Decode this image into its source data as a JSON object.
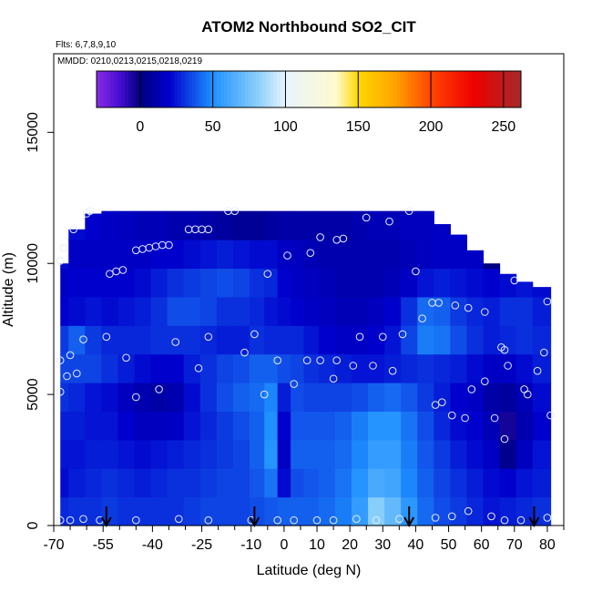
{
  "chart_data": {
    "type": "heatmap",
    "title": "ATOM2 Northbound SO2_CIT",
    "notes": [
      "Flts: 6,7,8,9,10",
      "MMDD: 0210,0213,0215,0218,0219"
    ],
    "xlabel": "Latitude (deg N)",
    "ylabel": "Altitude (m)",
    "xlim": [
      -70,
      85
    ],
    "ylim": [
      0,
      18000
    ],
    "x_ticks": [
      -70,
      -55,
      -40,
      -25,
      -10,
      0,
      10,
      20,
      30,
      40,
      50,
      60,
      70,
      80
    ],
    "x_tick_labels": [
      "-70",
      "-55",
      "-40",
      "-25",
      "-10",
      "0",
      "10",
      "20",
      "30",
      "40",
      "50",
      "60",
      "70",
      "80"
    ],
    "y_ticks": [
      0,
      5000,
      10000,
      15000
    ],
    "y_tick_labels": [
      "0",
      "5000",
      "10000",
      "15000"
    ],
    "colorbar": {
      "min": -30,
      "max": 262,
      "ticks": [
        0,
        50,
        100,
        150,
        200,
        250
      ],
      "tick_labels": [
        "0",
        "50",
        "100",
        "150",
        "200",
        "250"
      ],
      "stops": [
        {
          "v": -30,
          "color": "#8b2be2"
        },
        {
          "v": -15,
          "color": "#4b0fd6"
        },
        {
          "v": 0,
          "color": "#000080"
        },
        {
          "v": 20,
          "color": "#0000cd"
        },
        {
          "v": 50,
          "color": "#1e90ff"
        },
        {
          "v": 80,
          "color": "#87cefa"
        },
        {
          "v": 100,
          "color": "#e8f4ff"
        },
        {
          "v": 135,
          "color": "#fffacd"
        },
        {
          "v": 150,
          "color": "#ffd700"
        },
        {
          "v": 175,
          "color": "#ffa500"
        },
        {
          "v": 200,
          "color": "#ff4500"
        },
        {
          "v": 230,
          "color": "#ee0000"
        },
        {
          "v": 262,
          "color": "#a52a2a"
        }
      ]
    },
    "envelope": [
      {
        "x": -68,
        "top": 10000
      },
      {
        "x": -67,
        "top": 10600
      },
      {
        "x": -65,
        "top": 11300
      },
      {
        "x": -60,
        "top": 11900
      },
      {
        "x": -55,
        "top": 12000
      },
      {
        "x": 38,
        "top": 12000
      },
      {
        "x": 43,
        "top": 11500
      },
      {
        "x": 48,
        "top": 11100
      },
      {
        "x": 53,
        "top": 10500
      },
      {
        "x": 58,
        "top": 10000
      },
      {
        "x": 63,
        "top": 9600
      },
      {
        "x": 68,
        "top": 9300
      },
      {
        "x": 73,
        "top": 9100
      },
      {
        "x": 78,
        "top": 8800
      },
      {
        "x": 80,
        "top": 8700
      }
    ],
    "field": [
      {
        "x": -68,
        "values": [
          28,
          22,
          24,
          26,
          30,
          34,
          32,
          20,
          18,
          22,
          24
        ]
      },
      {
        "x": -63,
        "values": [
          30,
          26,
          24,
          26,
          28,
          34,
          40,
          22,
          20,
          18,
          22
        ]
      },
      {
        "x": -58,
        "values": [
          30,
          28,
          26,
          24,
          24,
          34,
          32,
          24,
          20,
          18,
          20
        ]
      },
      {
        "x": -53,
        "values": [
          32,
          30,
          26,
          24,
          22,
          30,
          28,
          22,
          20,
          18,
          18
        ]
      },
      {
        "x": -48,
        "values": [
          30,
          28,
          24,
          20,
          16,
          26,
          28,
          24,
          20,
          18,
          16
        ]
      },
      {
        "x": -43,
        "values": [
          30,
          26,
          22,
          16,
          12,
          22,
          28,
          26,
          22,
          18,
          14
        ]
      },
      {
        "x": -38,
        "values": [
          30,
          28,
          24,
          16,
          10,
          20,
          30,
          30,
          26,
          20,
          14
        ]
      },
      {
        "x": -33,
        "values": [
          30,
          30,
          26,
          18,
          12,
          20,
          30,
          36,
          30,
          20,
          12
        ]
      },
      {
        "x": -28,
        "values": [
          32,
          30,
          28,
          24,
          22,
          26,
          30,
          36,
          32,
          22,
          12
        ]
      },
      {
        "x": -23,
        "values": [
          34,
          32,
          30,
          28,
          30,
          30,
          28,
          34,
          34,
          24,
          10
        ]
      },
      {
        "x": -18,
        "values": [
          34,
          34,
          32,
          32,
          36,
          34,
          26,
          30,
          36,
          26,
          8
        ]
      },
      {
        "x": -13,
        "values": [
          34,
          34,
          34,
          36,
          40,
          36,
          26,
          30,
          34,
          24,
          6
        ]
      },
      {
        "x": -8,
        "values": [
          36,
          38,
          40,
          40,
          42,
          40,
          30,
          28,
          30,
          22,
          6
        ]
      },
      {
        "x": -4,
        "values": [
          38,
          44,
          52,
          50,
          48,
          40,
          28,
          24,
          28,
          22,
          8
        ]
      },
      {
        "x": 0,
        "values": [
          40,
          22,
          18,
          20,
          26,
          36,
          28,
          22,
          20,
          18,
          10
        ]
      },
      {
        "x": 4,
        "values": [
          40,
          36,
          40,
          38,
          36,
          34,
          28,
          20,
          18,
          16,
          10
        ]
      },
      {
        "x": 8,
        "values": [
          40,
          38,
          40,
          38,
          34,
          30,
          24,
          18,
          16,
          14,
          10
        ]
      },
      {
        "x": 13,
        "values": [
          42,
          40,
          40,
          38,
          34,
          28,
          20,
          16,
          14,
          12,
          10
        ]
      },
      {
        "x": 18,
        "values": [
          46,
          44,
          42,
          40,
          34,
          26,
          18,
          14,
          12,
          12,
          10
        ]
      },
      {
        "x": 23,
        "values": [
          56,
          52,
          48,
          46,
          36,
          24,
          18,
          14,
          12,
          12,
          12
        ]
      },
      {
        "x": 28,
        "values": [
          80,
          62,
          56,
          52,
          40,
          24,
          20,
          16,
          12,
          12,
          14
        ]
      },
      {
        "x": 33,
        "values": [
          70,
          60,
          56,
          52,
          42,
          26,
          24,
          20,
          14,
          12,
          14
        ]
      },
      {
        "x": 38,
        "values": [
          54,
          48,
          46,
          44,
          38,
          28,
          34,
          30,
          18,
          14,
          16
        ]
      },
      {
        "x": 43,
        "values": [
          42,
          40,
          38,
          36,
          32,
          30,
          46,
          42,
          24,
          16,
          16
        ]
      },
      {
        "x": 48,
        "values": [
          36,
          34,
          32,
          28,
          26,
          28,
          44,
          40,
          26,
          18,
          18
        ]
      },
      {
        "x": 53,
        "values": [
          32,
          30,
          26,
          22,
          20,
          26,
          36,
          32,
          24,
          18,
          20
        ]
      },
      {
        "x": 58,
        "values": [
          28,
          26,
          22,
          20,
          18,
          22,
          30,
          28,
          22,
          18,
          0
        ]
      },
      {
        "x": 63,
        "values": [
          24,
          22,
          18,
          14,
          10,
          18,
          26,
          26,
          20,
          0,
          0
        ]
      },
      {
        "x": 68,
        "values": [
          26,
          20,
          4,
          -4,
          8,
          18,
          28,
          30,
          22,
          0,
          0
        ]
      },
      {
        "x": 73,
        "values": [
          28,
          24,
          16,
          12,
          14,
          22,
          30,
          30,
          24,
          0,
          0
        ]
      },
      {
        "x": 78,
        "values": [
          30,
          26,
          24,
          20,
          22,
          26,
          28,
          26,
          22,
          0,
          0
        ]
      }
    ],
    "samples": [
      {
        "x": -68,
        "y": 10100
      },
      {
        "x": -67,
        "y": 10600
      },
      {
        "x": -64,
        "y": 11300
      },
      {
        "x": -60,
        "y": 11900
      },
      {
        "x": -59,
        "y": 12000
      },
      {
        "x": -53,
        "y": 9600
      },
      {
        "x": -51,
        "y": 9700
      },
      {
        "x": -49,
        "y": 9750
      },
      {
        "x": -45,
        "y": 10500
      },
      {
        "x": -43,
        "y": 10550
      },
      {
        "x": -41,
        "y": 10600
      },
      {
        "x": -39,
        "y": 10650
      },
      {
        "x": -37,
        "y": 10700
      },
      {
        "x": -35,
        "y": 10700
      },
      {
        "x": -29,
        "y": 11300
      },
      {
        "x": -27,
        "y": 11300
      },
      {
        "x": -25,
        "y": 11300
      },
      {
        "x": -23,
        "y": 11300
      },
      {
        "x": -17,
        "y": 12000
      },
      {
        "x": -15,
        "y": 12000
      },
      {
        "x": -5,
        "y": 9600
      },
      {
        "x": 1,
        "y": 10300
      },
      {
        "x": 8,
        "y": 10400
      },
      {
        "x": 11,
        "y": 11000
      },
      {
        "x": 16,
        "y": 10900
      },
      {
        "x": 18,
        "y": 10950
      },
      {
        "x": 25,
        "y": 11750
      },
      {
        "x": 32,
        "y": 11600
      },
      {
        "x": 38,
        "y": 12000
      },
      {
        "x": 40,
        "y": 9700
      },
      {
        "x": 42,
        "y": 7900
      },
      {
        "x": 45,
        "y": 8500
      },
      {
        "x": 47,
        "y": 8500
      },
      {
        "x": 52,
        "y": 8400
      },
      {
        "x": 56,
        "y": 8300
      },
      {
        "x": 61,
        "y": 8150
      },
      {
        "x": 70,
        "y": 9350
      },
      {
        "x": 80,
        "y": 8550
      },
      {
        "x": -68,
        "y": 6300
      },
      {
        "x": -66,
        "y": 5700
      },
      {
        "x": -65,
        "y": 6500
      },
      {
        "x": -63,
        "y": 5800
      },
      {
        "x": -61,
        "y": 7100
      },
      {
        "x": -54,
        "y": 7200
      },
      {
        "x": -48,
        "y": 6400
      },
      {
        "x": -45,
        "y": 4900
      },
      {
        "x": -38,
        "y": 5200
      },
      {
        "x": -33,
        "y": 7000
      },
      {
        "x": -26,
        "y": 6000
      },
      {
        "x": -23,
        "y": 7200
      },
      {
        "x": -12,
        "y": 6600
      },
      {
        "x": -9,
        "y": 7300
      },
      {
        "x": -6,
        "y": 5000
      },
      {
        "x": -2,
        "y": 6300
      },
      {
        "x": 3,
        "y": 5400
      },
      {
        "x": 7,
        "y": 6300
      },
      {
        "x": 11,
        "y": 6300
      },
      {
        "x": 15,
        "y": 5600
      },
      {
        "x": 16,
        "y": 6300
      },
      {
        "x": 21,
        "y": 6100
      },
      {
        "x": 23,
        "y": 7200
      },
      {
        "x": 27,
        "y": 6100
      },
      {
        "x": 30,
        "y": 7200
      },
      {
        "x": 33,
        "y": 5900
      },
      {
        "x": 36,
        "y": 7300
      },
      {
        "x": 46,
        "y": 4600
      },
      {
        "x": 48,
        "y": 4700
      },
      {
        "x": 51,
        "y": 4200
      },
      {
        "x": 55,
        "y": 4100
      },
      {
        "x": 57,
        "y": 5200
      },
      {
        "x": 61,
        "y": 5500
      },
      {
        "x": 64,
        "y": 4100
      },
      {
        "x": 66,
        "y": 6800
      },
      {
        "x": 67,
        "y": 6700
      },
      {
        "x": 68,
        "y": 6100
      },
      {
        "x": 67,
        "y": 3300
      },
      {
        "x": 73,
        "y": 5200
      },
      {
        "x": 74,
        "y": 5000
      },
      {
        "x": 77,
        "y": 5900
      },
      {
        "x": 79,
        "y": 6600
      },
      {
        "x": 81,
        "y": 4200
      },
      {
        "x": -68,
        "y": 5100
      },
      {
        "x": -68,
        "y": 200
      },
      {
        "x": -65,
        "y": 200
      },
      {
        "x": -61,
        "y": 250
      },
      {
        "x": -56,
        "y": 200
      },
      {
        "x": -45,
        "y": 200
      },
      {
        "x": -32,
        "y": 250
      },
      {
        "x": -23,
        "y": 200
      },
      {
        "x": -10,
        "y": 200
      },
      {
        "x": -2,
        "y": 200
      },
      {
        "x": 3,
        "y": 200
      },
      {
        "x": 10,
        "y": 200
      },
      {
        "x": 15,
        "y": 200
      },
      {
        "x": 22,
        "y": 250
      },
      {
        "x": 28,
        "y": 200
      },
      {
        "x": 35,
        "y": 250
      },
      {
        "x": 46,
        "y": 300
      },
      {
        "x": 51,
        "y": 350
      },
      {
        "x": 56,
        "y": 550
      },
      {
        "x": 63,
        "y": 350
      },
      {
        "x": 67,
        "y": 200
      },
      {
        "x": 72,
        "y": 200
      },
      {
        "x": 80,
        "y": 300
      }
    ],
    "arrows": [
      {
        "x": -54
      },
      {
        "x": -9
      },
      {
        "x": 38
      },
      {
        "x": 76
      }
    ]
  }
}
